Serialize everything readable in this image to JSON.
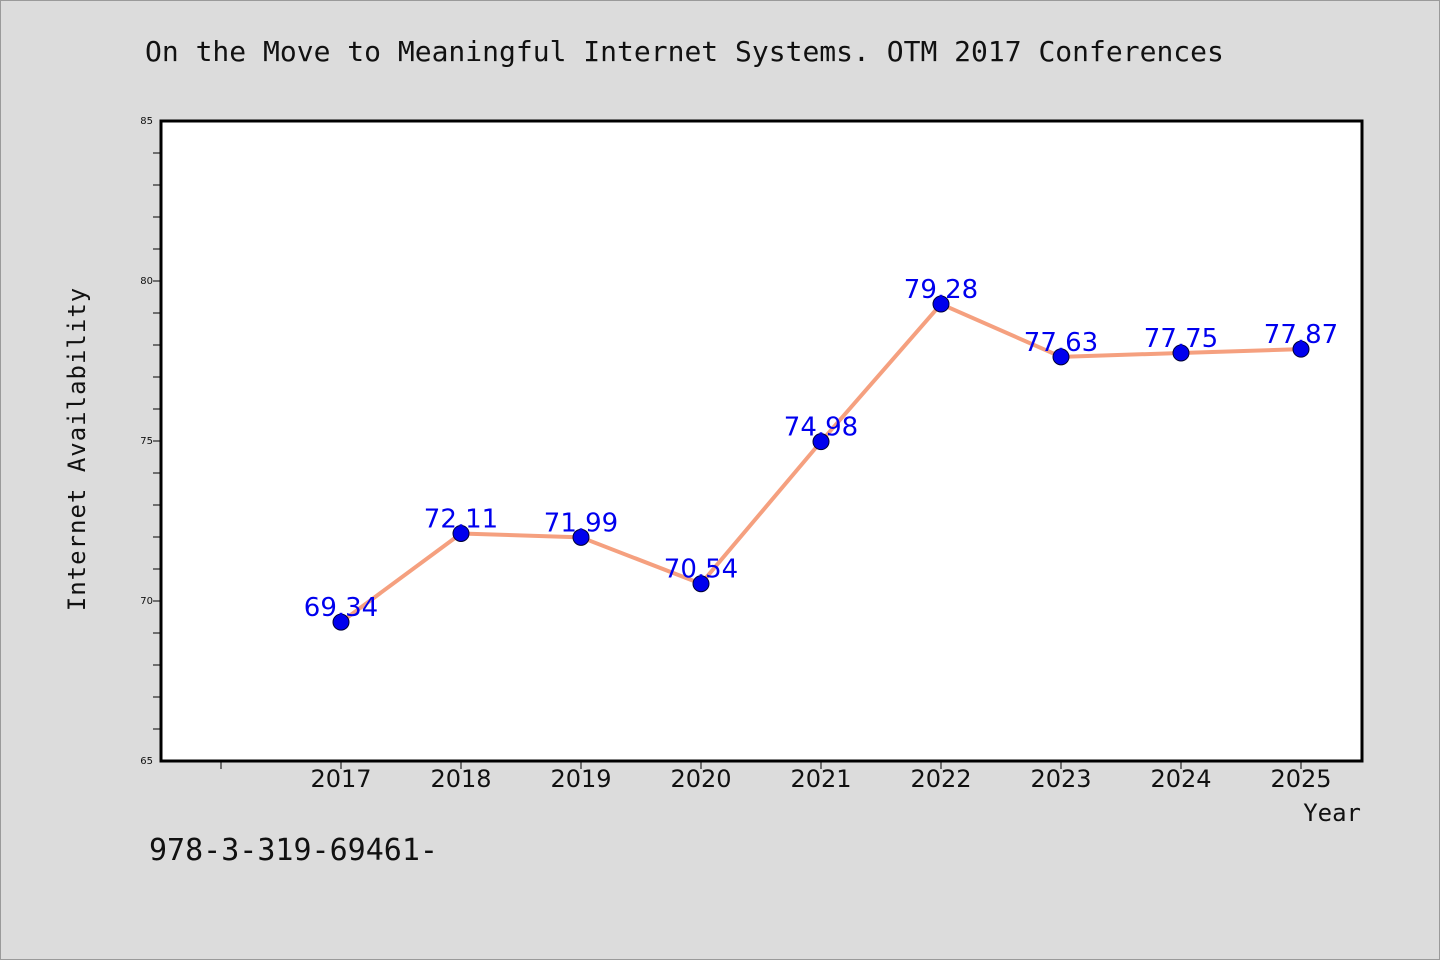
{
  "title": "On the Move to Meaningful Internet Systems. OTM 2017 Conferences",
  "footnote": "978-3-319-69461-",
  "chart_data": {
    "type": "line",
    "title": "On the Move to Meaningful Internet Systems. OTM 2017 Conferences",
    "xlabel": "Year",
    "ylabel": "Internet Availability",
    "x": [
      "2017",
      "2018",
      "2019",
      "2020",
      "2021",
      "2022",
      "2023",
      "2024",
      "2025"
    ],
    "values": [
      69.34,
      72.11,
      71.99,
      70.54,
      74.98,
      79.28,
      77.63,
      77.75,
      77.87
    ],
    "data_labels": [
      "69.34",
      "72.11",
      "71.99",
      "70.54",
      "74.98",
      "79.28",
      "77.63",
      "77.75",
      "77.87"
    ],
    "ylim": [
      65,
      85
    ],
    "yticks": [
      "65",
      "70",
      "75",
      "80",
      "85"
    ],
    "grid": false,
    "legend": "none",
    "colors": {
      "line": "#f5a07f",
      "marker": "#0000ee",
      "label": "#0000ee",
      "background": "#dcdcdc",
      "plot_background": "#ffffff"
    }
  }
}
